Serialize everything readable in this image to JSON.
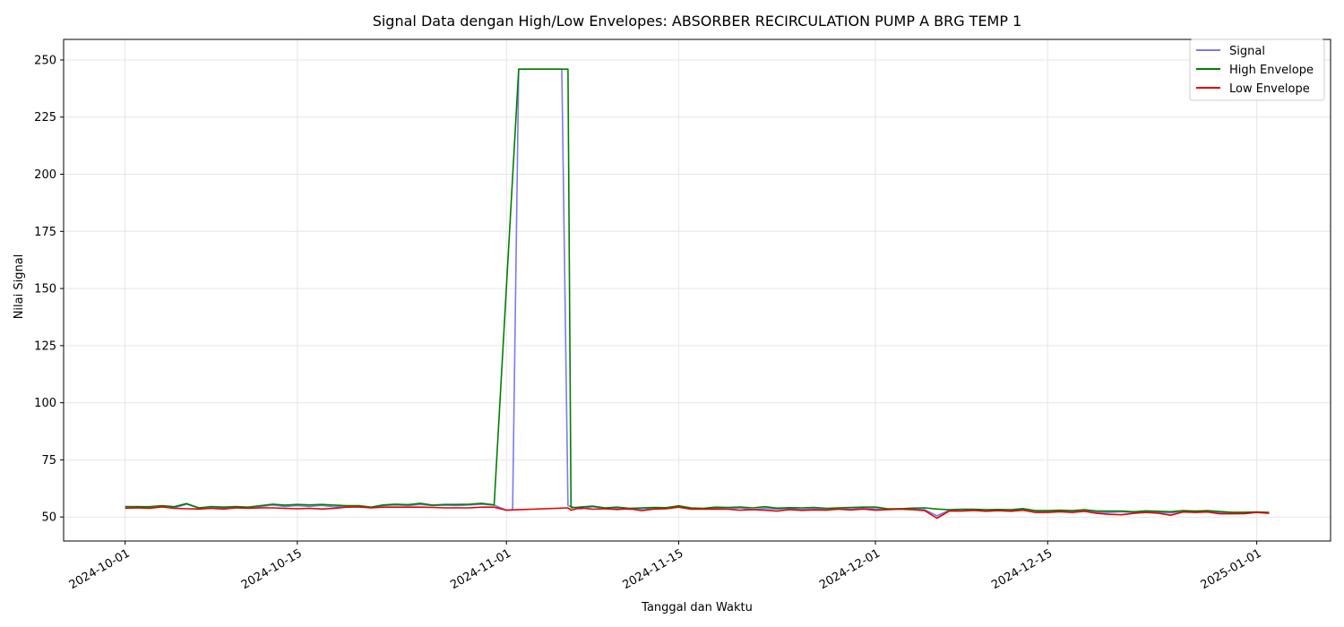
{
  "chart_data": {
    "type": "line",
    "title": "Signal Data dengan High/Low Envelopes: ABSORBER RECIRCULATION PUMP A BRG TEMP 1",
    "xlabel": "Tanggal dan Waktu",
    "ylabel": "Nilai Signal",
    "x_axis": "date",
    "xlim": [
      "2024-09-26",
      "2025-01-07"
    ],
    "ylim": [
      39.5,
      259
    ],
    "x_ticks": [
      "2024-10-01",
      "2024-10-15",
      "2024-11-01",
      "2024-11-15",
      "2024-12-01",
      "2024-12-15",
      "2025-01-01"
    ],
    "y_ticks": [
      50,
      75,
      100,
      125,
      150,
      175,
      200,
      225,
      250
    ],
    "grid": true,
    "legend_position": "top-right",
    "series": [
      {
        "name": "Signal",
        "color": "#7b7bef",
        "points": [
          [
            "2024-10-01",
            54.3
          ],
          [
            "2024-10-02",
            54.6
          ],
          [
            "2024-10-03",
            54.3
          ],
          [
            "2024-10-04",
            54.8
          ],
          [
            "2024-10-05",
            54.0
          ],
          [
            "2024-10-06",
            55.6
          ],
          [
            "2024-10-07",
            53.9
          ],
          [
            "2024-10-08",
            54.2
          ],
          [
            "2024-10-09",
            53.9
          ],
          [
            "2024-10-10",
            54.4
          ],
          [
            "2024-10-11",
            54.1
          ],
          [
            "2024-10-12",
            54.5
          ],
          [
            "2024-10-13",
            55.3
          ],
          [
            "2024-10-14",
            54.6
          ],
          [
            "2024-10-15",
            55.0
          ],
          [
            "2024-10-16",
            54.6
          ],
          [
            "2024-10-17",
            55.1
          ],
          [
            "2024-10-18",
            54.4
          ],
          [
            "2024-10-19",
            54.8
          ],
          [
            "2024-10-20",
            54.6
          ],
          [
            "2024-10-21",
            54.2
          ],
          [
            "2024-10-22",
            55.0
          ],
          [
            "2024-10-23",
            55.3
          ],
          [
            "2024-10-24",
            55.0
          ],
          [
            "2024-10-25",
            55.5
          ],
          [
            "2024-10-26",
            55.0
          ],
          [
            "2024-10-27",
            55.2
          ],
          [
            "2024-10-28",
            55.0
          ],
          [
            "2024-10-29",
            55.3
          ],
          [
            "2024-10-30",
            55.6
          ],
          [
            "2024-10-31",
            55.2
          ],
          [
            "2024-11-01",
            53.0
          ],
          [
            "2024-11-01T12:00",
            53.2
          ],
          [
            "2024-11-02",
            246.0
          ],
          [
            "2024-11-03",
            246.0
          ],
          [
            "2024-11-04",
            246.0
          ],
          [
            "2024-11-05",
            246.0
          ],
          [
            "2024-11-05T12:00",
            246.0
          ],
          [
            "2024-11-06",
            55.0
          ],
          [
            "2024-11-07",
            53.5
          ],
          [
            "2024-11-08",
            54.5
          ],
          [
            "2024-11-09",
            53.8
          ],
          [
            "2024-11-10",
            54.0
          ],
          [
            "2024-11-11",
            53.3
          ],
          [
            "2024-11-12",
            53.6
          ],
          [
            "2024-11-13",
            53.9
          ],
          [
            "2024-11-14",
            53.7
          ],
          [
            "2024-11-15",
            54.6
          ],
          [
            "2024-11-16",
            53.8
          ],
          [
            "2024-11-17",
            53.6
          ],
          [
            "2024-11-18",
            54.0
          ],
          [
            "2024-11-19",
            53.6
          ],
          [
            "2024-11-20",
            54.0
          ],
          [
            "2024-11-21",
            53.2
          ],
          [
            "2024-11-22",
            53.8
          ],
          [
            "2024-11-23",
            53.5
          ],
          [
            "2024-11-24",
            53.7
          ],
          [
            "2024-11-25",
            53.3
          ],
          [
            "2024-11-26",
            53.6
          ],
          [
            "2024-11-27",
            53.4
          ],
          [
            "2024-11-28",
            53.8
          ],
          [
            "2024-11-29",
            53.5
          ],
          [
            "2024-11-30",
            53.9
          ],
          [
            "2024-12-01",
            53.6
          ],
          [
            "2024-12-02",
            53.4
          ],
          [
            "2024-12-03",
            53.7
          ],
          [
            "2024-12-04",
            53.5
          ],
          [
            "2024-12-05",
            53.2
          ],
          [
            "2024-12-06",
            50.5
          ],
          [
            "2024-12-07",
            53.0
          ],
          [
            "2024-12-08",
            52.8
          ],
          [
            "2024-12-09",
            53.2
          ],
          [
            "2024-12-10",
            52.9
          ],
          [
            "2024-12-11",
            53.1
          ],
          [
            "2024-12-12",
            52.8
          ],
          [
            "2024-12-13",
            53.5
          ],
          [
            "2024-12-14",
            52.6
          ],
          [
            "2024-12-15",
            52.4
          ],
          [
            "2024-12-16",
            52.6
          ],
          [
            "2024-12-17",
            52.3
          ],
          [
            "2024-12-18",
            52.9
          ],
          [
            "2024-12-19",
            52.1
          ],
          [
            "2024-12-20",
            52.0
          ],
          [
            "2024-12-21",
            52.3
          ],
          [
            "2024-12-22",
            52.0
          ],
          [
            "2024-12-23",
            52.4
          ],
          [
            "2024-12-24",
            52.1
          ],
          [
            "2024-12-25",
            51.8
          ],
          [
            "2024-12-26",
            52.5
          ],
          [
            "2024-12-27",
            52.3
          ],
          [
            "2024-12-28",
            52.6
          ],
          [
            "2024-12-29",
            52.0
          ],
          [
            "2024-12-30",
            51.8
          ],
          [
            "2024-12-31",
            51.9
          ],
          [
            "2025-01-01",
            52.1
          ],
          [
            "2025-01-02",
            51.8
          ]
        ]
      },
      {
        "name": "High Envelope",
        "color": "#007f00",
        "points": [
          [
            "2024-10-01",
            54.6
          ],
          [
            "2024-10-02",
            54.5
          ],
          [
            "2024-10-03",
            54.5
          ],
          [
            "2024-10-04",
            55.0
          ],
          [
            "2024-10-05",
            54.5
          ],
          [
            "2024-10-06",
            55.9
          ],
          [
            "2024-10-07",
            54.0
          ],
          [
            "2024-10-08",
            54.6
          ],
          [
            "2024-10-09",
            54.3
          ],
          [
            "2024-10-10",
            54.6
          ],
          [
            "2024-10-11",
            54.3
          ],
          [
            "2024-10-12",
            55.0
          ],
          [
            "2024-10-13",
            55.6
          ],
          [
            "2024-10-14",
            55.2
          ],
          [
            "2024-10-15",
            55.5
          ],
          [
            "2024-10-16",
            55.3
          ],
          [
            "2024-10-17",
            55.5
          ],
          [
            "2024-10-18",
            55.2
          ],
          [
            "2024-10-19",
            55.0
          ],
          [
            "2024-10-20",
            55.0
          ],
          [
            "2024-10-21",
            54.3
          ],
          [
            "2024-10-22",
            55.3
          ],
          [
            "2024-10-23",
            55.6
          ],
          [
            "2024-10-24",
            55.4
          ],
          [
            "2024-10-25",
            56.0
          ],
          [
            "2024-10-26",
            55.2
          ],
          [
            "2024-10-27",
            55.5
          ],
          [
            "2024-10-28",
            55.5
          ],
          [
            "2024-10-29",
            55.6
          ],
          [
            "2024-10-30",
            56.0
          ],
          [
            "2024-10-31",
            55.3
          ],
          [
            "2024-11-02",
            246.0
          ],
          [
            "2024-11-06",
            246.0
          ],
          [
            "2024-11-06T06:00",
            54.0
          ],
          [
            "2024-11-07",
            54.4
          ],
          [
            "2024-11-08",
            54.8
          ],
          [
            "2024-11-09",
            54.0
          ],
          [
            "2024-11-10",
            54.3
          ],
          [
            "2024-11-11",
            53.8
          ],
          [
            "2024-11-12",
            54.0
          ],
          [
            "2024-11-13",
            54.2
          ],
          [
            "2024-11-14",
            54.1
          ],
          [
            "2024-11-15",
            54.9
          ],
          [
            "2024-11-16",
            54.0
          ],
          [
            "2024-11-17",
            53.8
          ],
          [
            "2024-11-18",
            54.3
          ],
          [
            "2024-11-19",
            54.2
          ],
          [
            "2024-11-20",
            54.4
          ],
          [
            "2024-11-21",
            54.0
          ],
          [
            "2024-11-22",
            54.5
          ],
          [
            "2024-11-23",
            53.9
          ],
          [
            "2024-11-24",
            54.1
          ],
          [
            "2024-11-25",
            54.0
          ],
          [
            "2024-11-26",
            54.2
          ],
          [
            "2024-11-27",
            53.8
          ],
          [
            "2024-11-28",
            54.0
          ],
          [
            "2024-11-29",
            54.2
          ],
          [
            "2024-11-30",
            54.3
          ],
          [
            "2024-12-01",
            54.4
          ],
          [
            "2024-12-02",
            53.6
          ],
          [
            "2024-12-03",
            53.6
          ],
          [
            "2024-12-04",
            53.9
          ],
          [
            "2024-12-05",
            54.0
          ],
          [
            "2024-12-06",
            53.5
          ],
          [
            "2024-12-07",
            53.2
          ],
          [
            "2024-12-08",
            53.4
          ],
          [
            "2024-12-09",
            53.4
          ],
          [
            "2024-12-10",
            53.2
          ],
          [
            "2024-12-11",
            53.3
          ],
          [
            "2024-12-12",
            53.2
          ],
          [
            "2024-12-13",
            53.7
          ],
          [
            "2024-12-14",
            52.8
          ],
          [
            "2024-12-15",
            52.8
          ],
          [
            "2024-12-16",
            53.0
          ],
          [
            "2024-12-17",
            52.8
          ],
          [
            "2024-12-18",
            53.2
          ],
          [
            "2024-12-19",
            52.6
          ],
          [
            "2024-12-20",
            52.6
          ],
          [
            "2024-12-21",
            52.6
          ],
          [
            "2024-12-22",
            52.3
          ],
          [
            "2024-12-23",
            52.7
          ],
          [
            "2024-12-24",
            52.5
          ],
          [
            "2024-12-25",
            52.3
          ],
          [
            "2024-12-26",
            52.8
          ],
          [
            "2024-12-27",
            52.6
          ],
          [
            "2024-12-28",
            52.8
          ],
          [
            "2024-12-29",
            52.4
          ],
          [
            "2024-12-30",
            52.1
          ],
          [
            "2024-12-31",
            52.1
          ],
          [
            "2025-01-01",
            52.2
          ],
          [
            "2025-01-02",
            52.0
          ]
        ]
      },
      {
        "name": "Low Envelope",
        "color": "#e60000",
        "points": [
          [
            "2024-10-01",
            53.8
          ],
          [
            "2024-10-02",
            54.0
          ],
          [
            "2024-10-03",
            53.8
          ],
          [
            "2024-10-04",
            54.4
          ],
          [
            "2024-10-05",
            53.8
          ],
          [
            "2024-10-06",
            53.6
          ],
          [
            "2024-10-07",
            53.5
          ],
          [
            "2024-10-08",
            53.8
          ],
          [
            "2024-10-09",
            53.5
          ],
          [
            "2024-10-10",
            54.0
          ],
          [
            "2024-10-11",
            53.8
          ],
          [
            "2024-10-12",
            54.0
          ],
          [
            "2024-10-13",
            54.0
          ],
          [
            "2024-10-14",
            53.8
          ],
          [
            "2024-10-15",
            53.6
          ],
          [
            "2024-10-16",
            53.8
          ],
          [
            "2024-10-17",
            53.5
          ],
          [
            "2024-10-18",
            53.8
          ],
          [
            "2024-10-19",
            54.3
          ],
          [
            "2024-10-20",
            54.4
          ],
          [
            "2024-10-21",
            54.0
          ],
          [
            "2024-10-22",
            54.3
          ],
          [
            "2024-10-23",
            54.3
          ],
          [
            "2024-10-24",
            54.3
          ],
          [
            "2024-10-25",
            54.3
          ],
          [
            "2024-10-26",
            54.2
          ],
          [
            "2024-10-27",
            54.0
          ],
          [
            "2024-10-28",
            54.0
          ],
          [
            "2024-10-29",
            54.0
          ],
          [
            "2024-10-30",
            54.3
          ],
          [
            "2024-10-31",
            54.3
          ],
          [
            "2024-11-01",
            53.0
          ],
          [
            "2024-11-06",
            54.0
          ],
          [
            "2024-11-06T06:00",
            53.0
          ],
          [
            "2024-11-07",
            54.0
          ],
          [
            "2024-11-08",
            53.4
          ],
          [
            "2024-11-09",
            53.6
          ],
          [
            "2024-11-10",
            53.3
          ],
          [
            "2024-11-11",
            53.6
          ],
          [
            "2024-11-12",
            52.8
          ],
          [
            "2024-11-13",
            53.5
          ],
          [
            "2024-11-14",
            53.6
          ],
          [
            "2024-11-15",
            54.3
          ],
          [
            "2024-11-16",
            53.4
          ],
          [
            "2024-11-17",
            53.4
          ],
          [
            "2024-11-18",
            53.5
          ],
          [
            "2024-11-19",
            53.4
          ],
          [
            "2024-11-20",
            53.0
          ],
          [
            "2024-11-21",
            53.2
          ],
          [
            "2024-11-22",
            53.0
          ],
          [
            "2024-11-23",
            52.6
          ],
          [
            "2024-11-24",
            53.2
          ],
          [
            "2024-11-25",
            52.9
          ],
          [
            "2024-11-26",
            53.1
          ],
          [
            "2024-11-27",
            53.0
          ],
          [
            "2024-11-28",
            53.4
          ],
          [
            "2024-11-29",
            53.1
          ],
          [
            "2024-11-30",
            53.5
          ],
          [
            "2024-12-01",
            53.0
          ],
          [
            "2024-12-02",
            53.2
          ],
          [
            "2024-12-03",
            53.4
          ],
          [
            "2024-12-04",
            53.2
          ],
          [
            "2024-12-05",
            52.8
          ],
          [
            "2024-12-06",
            49.5
          ],
          [
            "2024-12-07",
            52.6
          ],
          [
            "2024-12-08",
            52.6
          ],
          [
            "2024-12-09",
            52.9
          ],
          [
            "2024-12-10",
            52.5
          ],
          [
            "2024-12-11",
            52.8
          ],
          [
            "2024-12-12",
            52.5
          ],
          [
            "2024-12-13",
            53.0
          ],
          [
            "2024-12-14",
            52.0
          ],
          [
            "2024-12-15",
            52.0
          ],
          [
            "2024-12-16",
            52.3
          ],
          [
            "2024-12-17",
            52.0
          ],
          [
            "2024-12-18",
            52.5
          ],
          [
            "2024-12-19",
            51.6
          ],
          [
            "2024-12-20",
            51.2
          ],
          [
            "2024-12-21",
            51.0
          ],
          [
            "2024-12-22",
            51.6
          ],
          [
            "2024-12-23",
            52.0
          ],
          [
            "2024-12-24",
            51.7
          ],
          [
            "2024-12-25",
            50.8
          ],
          [
            "2024-12-26",
            52.2
          ],
          [
            "2024-12-27",
            52.0
          ],
          [
            "2024-12-28",
            52.2
          ],
          [
            "2024-12-29",
            51.4
          ],
          [
            "2024-12-30",
            51.4
          ],
          [
            "2024-12-31",
            51.5
          ],
          [
            "2025-01-01",
            52.0
          ],
          [
            "2025-01-02",
            51.6
          ]
        ]
      }
    ]
  }
}
